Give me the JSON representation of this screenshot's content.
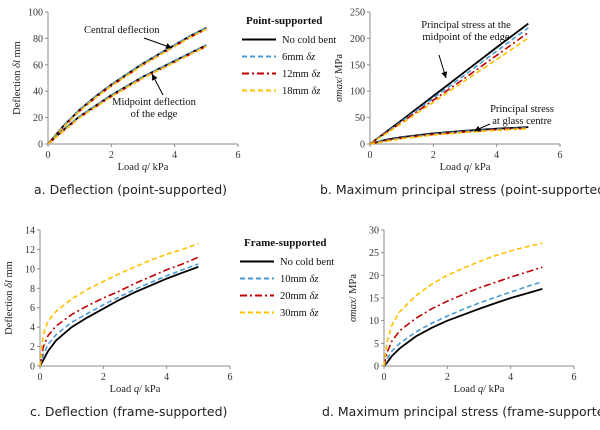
{
  "chart_data": [
    {
      "type": "line",
      "caption": "a. Deflection (point-supported)",
      "xlabel_prefix": "Load ",
      "xlabel_sym": "q",
      "xlabel_suffix": "/ kPa",
      "ylabel_prefix": "Deflection ",
      "ylabel_sym": "δl",
      "ylabel_suffix": " mm",
      "xlim": [
        0,
        6
      ],
      "ylim": [
        0,
        100
      ],
      "xticks": [
        0,
        2,
        4,
        6
      ],
      "yticks": [
        0,
        20,
        40,
        60,
        80,
        100
      ],
      "grid": false,
      "legend": {
        "position": "right",
        "title": "Point-supported",
        "entries": [
          {
            "label": "No cold bent",
            "sym": "",
            "color": "#000000",
            "dash": "solid"
          },
          {
            "label": "6mm",
            "sym": "δz",
            "color": "#4a9bd4",
            "dash": "dash"
          },
          {
            "label": "12mm",
            "sym": "δz",
            "color": "#c00000",
            "dash": "dashdot"
          },
          {
            "label": "18mm",
            "sym": "δz",
            "color": "#ffc000",
            "dash": "dash"
          }
        ]
      },
      "annotations": [
        {
          "lines": [
            "Central deflection"
          ]
        },
        {
          "lines": [
            "Midpoint deflection",
            "of the edge"
          ]
        }
      ],
      "series": [
        {
          "group": "Central deflection",
          "legend": "No cold bent",
          "x": [
            0,
            0.5,
            1,
            1.5,
            2,
            2.5,
            3,
            3.5,
            4,
            4.5,
            5
          ],
          "y": [
            0,
            14,
            26,
            36,
            45,
            53,
            61,
            68,
            75,
            82,
            88
          ]
        },
        {
          "group": "Central deflection",
          "legend": "6mm",
          "x": [
            0,
            0.5,
            1,
            1.5,
            2,
            2.5,
            3,
            3.5,
            4,
            4.5,
            5
          ],
          "y": [
            0,
            14,
            26,
            36,
            45,
            53,
            61,
            68,
            75,
            82,
            88
          ]
        },
        {
          "group": "Central deflection",
          "legend": "12mm",
          "x": [
            0,
            0.5,
            1,
            1.5,
            2,
            2.5,
            3,
            3.5,
            4,
            4.5,
            5
          ],
          "y": [
            0,
            13,
            25,
            35,
            44,
            52,
            60,
            67,
            74,
            81,
            87
          ]
        },
        {
          "group": "Central deflection",
          "legend": "18mm",
          "x": [
            0,
            0.5,
            1,
            1.5,
            2,
            2.5,
            3,
            3.5,
            4,
            4.5,
            5
          ],
          "y": [
            0,
            13,
            25,
            35,
            44,
            52,
            60,
            67,
            74,
            81,
            87
          ]
        },
        {
          "group": "Midpoint deflection of the edge",
          "legend": "No cold bent",
          "x": [
            0,
            0.5,
            1,
            1.5,
            2,
            2.5,
            3,
            3.5,
            4,
            4.5,
            5
          ],
          "y": [
            0,
            11,
            21,
            29,
            37,
            44,
            51,
            57,
            63,
            69,
            75
          ]
        },
        {
          "group": "Midpoint deflection of the edge",
          "legend": "6mm",
          "x": [
            0,
            0.5,
            1,
            1.5,
            2,
            2.5,
            3,
            3.5,
            4,
            4.5,
            5
          ],
          "y": [
            0,
            11,
            21,
            29,
            37,
            44,
            51,
            57,
            63,
            69,
            75
          ]
        },
        {
          "group": "Midpoint deflection of the edge",
          "legend": "12mm",
          "x": [
            0,
            0.5,
            1,
            1.5,
            2,
            2.5,
            3,
            3.5,
            4,
            4.5,
            5
          ],
          "y": [
            0,
            10,
            20,
            28,
            36,
            43,
            50,
            56,
            62,
            68,
            74
          ]
        },
        {
          "group": "Midpoint deflection of the edge",
          "legend": "18mm",
          "x": [
            0,
            0.5,
            1,
            1.5,
            2,
            2.5,
            3,
            3.5,
            4,
            4.5,
            5
          ],
          "y": [
            0,
            10,
            20,
            28,
            36,
            43,
            50,
            56,
            62,
            68,
            74
          ]
        }
      ]
    },
    {
      "type": "line",
      "caption": "b. Maximum principal stress (point-supported)",
      "xlabel_prefix": "Load ",
      "xlabel_sym": "q",
      "xlabel_suffix": "/ kPa",
      "ylabel_prefix": "",
      "ylabel_sym": "σmax",
      "ylabel_suffix": "/ MPa",
      "xlim": [
        0,
        6
      ],
      "ylim": [
        0,
        250
      ],
      "xticks": [
        0,
        2,
        4,
        6
      ],
      "yticks": [
        0,
        50,
        100,
        150,
        200,
        250
      ],
      "grid": false,
      "annotations": [
        {
          "lines": [
            "Principal stress at the",
            "midpoint of the edge"
          ]
        },
        {
          "lines": [
            "Principal stress",
            "at glass centre"
          ]
        }
      ],
      "series": [
        {
          "group": "Principal stress at the midpoint of the edge",
          "legend": "No cold bent",
          "x": [
            0,
            1,
            2,
            3,
            4,
            5
          ],
          "y": [
            0,
            45,
            91,
            137,
            183,
            228
          ]
        },
        {
          "group": "Principal stress at the midpoint of the edge",
          "legend": "6mm",
          "x": [
            0,
            1,
            2,
            3,
            4,
            5
          ],
          "y": [
            0,
            43,
            87,
            131,
            176,
            220
          ]
        },
        {
          "group": "Principal stress at the midpoint of the edge",
          "legend": "12mm",
          "x": [
            0,
            1,
            2,
            3,
            4,
            5
          ],
          "y": [
            0,
            41,
            83,
            125,
            168,
            211
          ]
        },
        {
          "group": "Principal stress at the midpoint of the edge",
          "legend": "18mm",
          "x": [
            0,
            1,
            2,
            3,
            4,
            5
          ],
          "y": [
            0,
            39,
            79,
            120,
            160,
            201
          ]
        },
        {
          "group": "Principal stress at glass centre",
          "legend": "No cold bent",
          "x": [
            0,
            0.5,
            1,
            2,
            3,
            4,
            5
          ],
          "y": [
            0,
            8,
            13,
            20,
            25,
            29,
            32
          ]
        },
        {
          "group": "Principal stress at glass centre",
          "legend": "6mm",
          "x": [
            0,
            0.5,
            1,
            2,
            3,
            4,
            5
          ],
          "y": [
            0,
            7,
            12,
            19,
            24,
            28,
            31
          ]
        },
        {
          "group": "Principal stress at glass centre",
          "legend": "12mm",
          "x": [
            0,
            0.5,
            1,
            2,
            3,
            4,
            5
          ],
          "y": [
            0,
            6,
            11,
            18,
            23,
            27,
            30
          ]
        },
        {
          "group": "Principal stress at glass centre",
          "legend": "18mm",
          "x": [
            0,
            0.5,
            1,
            2,
            3,
            4,
            5
          ],
          "y": [
            0,
            5,
            10,
            17,
            22,
            26,
            29
          ]
        }
      ]
    },
    {
      "type": "line",
      "caption": "c. Deflection (frame-supported)",
      "xlabel_prefix": "Load ",
      "xlabel_sym": "q",
      "xlabel_suffix": "/ kPa",
      "ylabel_prefix": "Deflection ",
      "ylabel_sym": "δl",
      "ylabel_suffix": " mm",
      "xlim": [
        0,
        6
      ],
      "ylim": [
        0,
        14
      ],
      "xticks": [
        0,
        2,
        4,
        6
      ],
      "yticks": [
        0,
        2,
        4,
        6,
        8,
        10,
        12,
        14
      ],
      "grid": false,
      "legend": {
        "position": "right",
        "title": "Frame-supported",
        "entries": [
          {
            "label": "No cold bent",
            "sym": "",
            "color": "#000000",
            "dash": "solid"
          },
          {
            "label": "10mm",
            "sym": "δz",
            "color": "#4a9bd4",
            "dash": "dash"
          },
          {
            "label": "20mm",
            "sym": "δz",
            "color": "#c00000",
            "dash": "dashdot"
          },
          {
            "label": "30mm",
            "sym": "δz",
            "color": "#ffc000",
            "dash": "dash"
          }
        ]
      },
      "series": [
        {
          "legend": "No cold bent",
          "x": [
            0,
            0.1,
            0.25,
            0.5,
            1,
            1.5,
            2,
            2.5,
            3,
            3.5,
            4,
            4.5,
            5
          ],
          "y": [
            0,
            0.6,
            1.5,
            2.6,
            4.0,
            5.0,
            5.9,
            6.8,
            7.6,
            8.3,
            9.0,
            9.6,
            10.2
          ]
        },
        {
          "legend": "10mm",
          "x": [
            0,
            0.1,
            0.25,
            0.5,
            1,
            1.5,
            2,
            2.5,
            3,
            3.5,
            4,
            4.5,
            5
          ],
          "y": [
            0,
            1.1,
            2.2,
            3.2,
            4.5,
            5.4,
            6.3,
            7.1,
            7.9,
            8.6,
            9.3,
            9.9,
            10.5
          ]
        },
        {
          "legend": "20mm",
          "x": [
            0,
            0.1,
            0.25,
            0.5,
            1,
            1.5,
            2,
            2.5,
            3,
            3.5,
            4,
            4.5,
            5
          ],
          "y": [
            0,
            1.9,
            3.1,
            4.1,
            5.3,
            6.2,
            7.0,
            7.7,
            8.5,
            9.2,
            9.9,
            10.5,
            11.2
          ]
        },
        {
          "legend": "30mm",
          "x": [
            0,
            0.1,
            0.25,
            0.5,
            1,
            1.5,
            2,
            2.5,
            3,
            3.5,
            4,
            4.5,
            5
          ],
          "y": [
            0,
            3.2,
            4.6,
            5.6,
            6.9,
            7.9,
            8.7,
            9.5,
            10.2,
            10.9,
            11.5,
            12.0,
            12.6
          ]
        }
      ]
    },
    {
      "type": "line",
      "caption": "d. Maximum principal stress (frame-supported)",
      "xlabel_prefix": "Load ",
      "xlabel_sym": "q",
      "xlabel_suffix": "/ kPa",
      "ylabel_prefix": "",
      "ylabel_sym": "σmax",
      "ylabel_suffix": "/ MPa",
      "xlim": [
        0,
        6
      ],
      "ylim": [
        0,
        30
      ],
      "xticks": [
        0,
        2,
        4,
        6
      ],
      "yticks": [
        0,
        5,
        10,
        15,
        20,
        25,
        30
      ],
      "grid": false,
      "series": [
        {
          "legend": "No cold bent",
          "x": [
            0,
            0.1,
            0.25,
            0.5,
            1,
            1.5,
            2,
            2.5,
            3,
            3.5,
            4,
            4.5,
            5
          ],
          "y": [
            0,
            0.8,
            2.2,
            3.9,
            6.5,
            8.4,
            10.0,
            11.3,
            12.6,
            13.8,
            15.0,
            16.0,
            17.0
          ]
        },
        {
          "legend": "10mm",
          "x": [
            0,
            0.1,
            0.25,
            0.5,
            1,
            1.5,
            2,
            2.5,
            3,
            3.5,
            4,
            4.5,
            5
          ],
          "y": [
            0,
            1.6,
            3.3,
            5.0,
            7.5,
            9.4,
            11.0,
            12.5,
            13.9,
            15.1,
            16.3,
            17.5,
            18.6
          ]
        },
        {
          "legend": "20mm",
          "x": [
            0,
            0.1,
            0.25,
            0.5,
            1,
            1.5,
            2,
            2.5,
            3,
            3.5,
            4,
            4.5,
            5
          ],
          "y": [
            0,
            3.0,
            5.5,
            7.8,
            10.5,
            12.6,
            14.3,
            15.8,
            17.2,
            18.4,
            19.6,
            20.7,
            21.8
          ]
        },
        {
          "legend": "30mm",
          "x": [
            0,
            0.1,
            0.25,
            0.5,
            1,
            1.5,
            2,
            2.5,
            3,
            3.5,
            4,
            4.5,
            5
          ],
          "y": [
            0,
            5.5,
            9.0,
            12.0,
            15.5,
            18.0,
            20.0,
            21.6,
            23.0,
            24.3,
            25.4,
            26.3,
            27.1
          ]
        }
      ]
    }
  ]
}
